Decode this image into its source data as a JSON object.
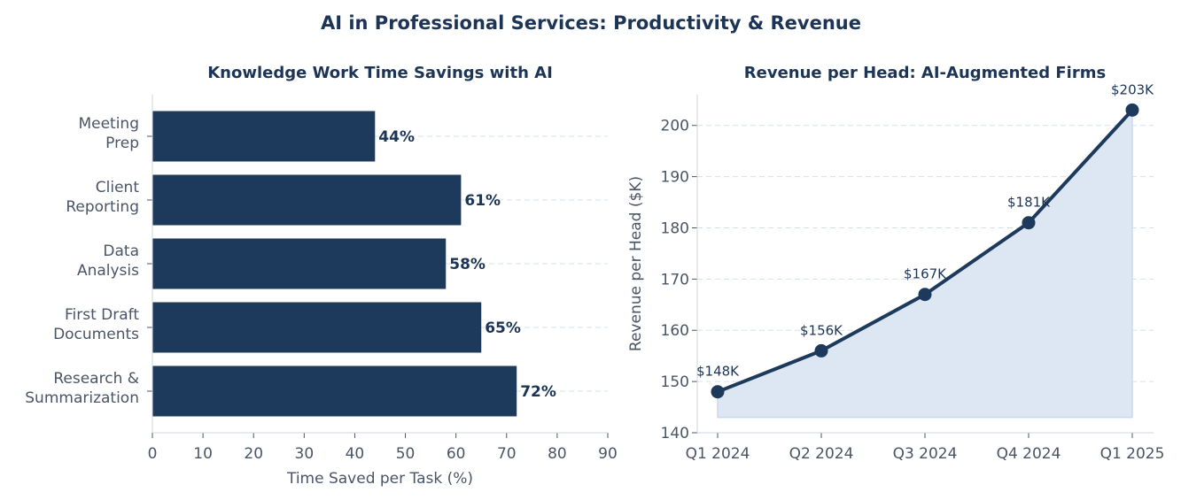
{
  "figure": {
    "title": "AI in Professional Services: Productivity & Revenue"
  },
  "colors": {
    "primary": "#1d3a5c",
    "fill": "#dce7f3",
    "grid": "#d6e0ec",
    "text": "#4a5566",
    "title": "#1c3557"
  },
  "chart_data": [
    {
      "type": "bar",
      "orientation": "horizontal",
      "title": "Knowledge Work Time Savings with AI",
      "xlabel": "Time Saved per Task (%)",
      "ylabel": "",
      "categories": [
        [
          "Meeting",
          "Prep"
        ],
        [
          "Client",
          "Reporting"
        ],
        [
          "Data",
          "Analysis"
        ],
        [
          "First Draft",
          "Documents"
        ],
        [
          "Research &",
          "Summarization"
        ]
      ],
      "values": [
        44,
        61,
        58,
        65,
        72
      ],
      "data_labels": [
        "44%",
        "61%",
        "58%",
        "65%",
        "72%"
      ],
      "xlim": [
        0,
        90
      ],
      "xticks": [
        0,
        10,
        20,
        30,
        40,
        50,
        60,
        70,
        80,
        90
      ],
      "grid": "x-dashed"
    },
    {
      "type": "area",
      "title": "Revenue per Head: AI-Augmented Firms",
      "xlabel": "",
      "ylabel": "Revenue per Head ($K)",
      "categories": [
        "Q1 2024",
        "Q2 2024",
        "Q3 2024",
        "Q4 2024",
        "Q1 2025"
      ],
      "values": [
        148,
        156,
        167,
        181,
        203
      ],
      "data_labels": [
        "$148K",
        "$156K",
        "$167K",
        "$181K",
        "$203K"
      ],
      "fill_base": 143,
      "ylim": [
        140,
        206
      ],
      "yticks": [
        140,
        150,
        160,
        170,
        180,
        190,
        200
      ],
      "grid": "y-dashed"
    }
  ]
}
